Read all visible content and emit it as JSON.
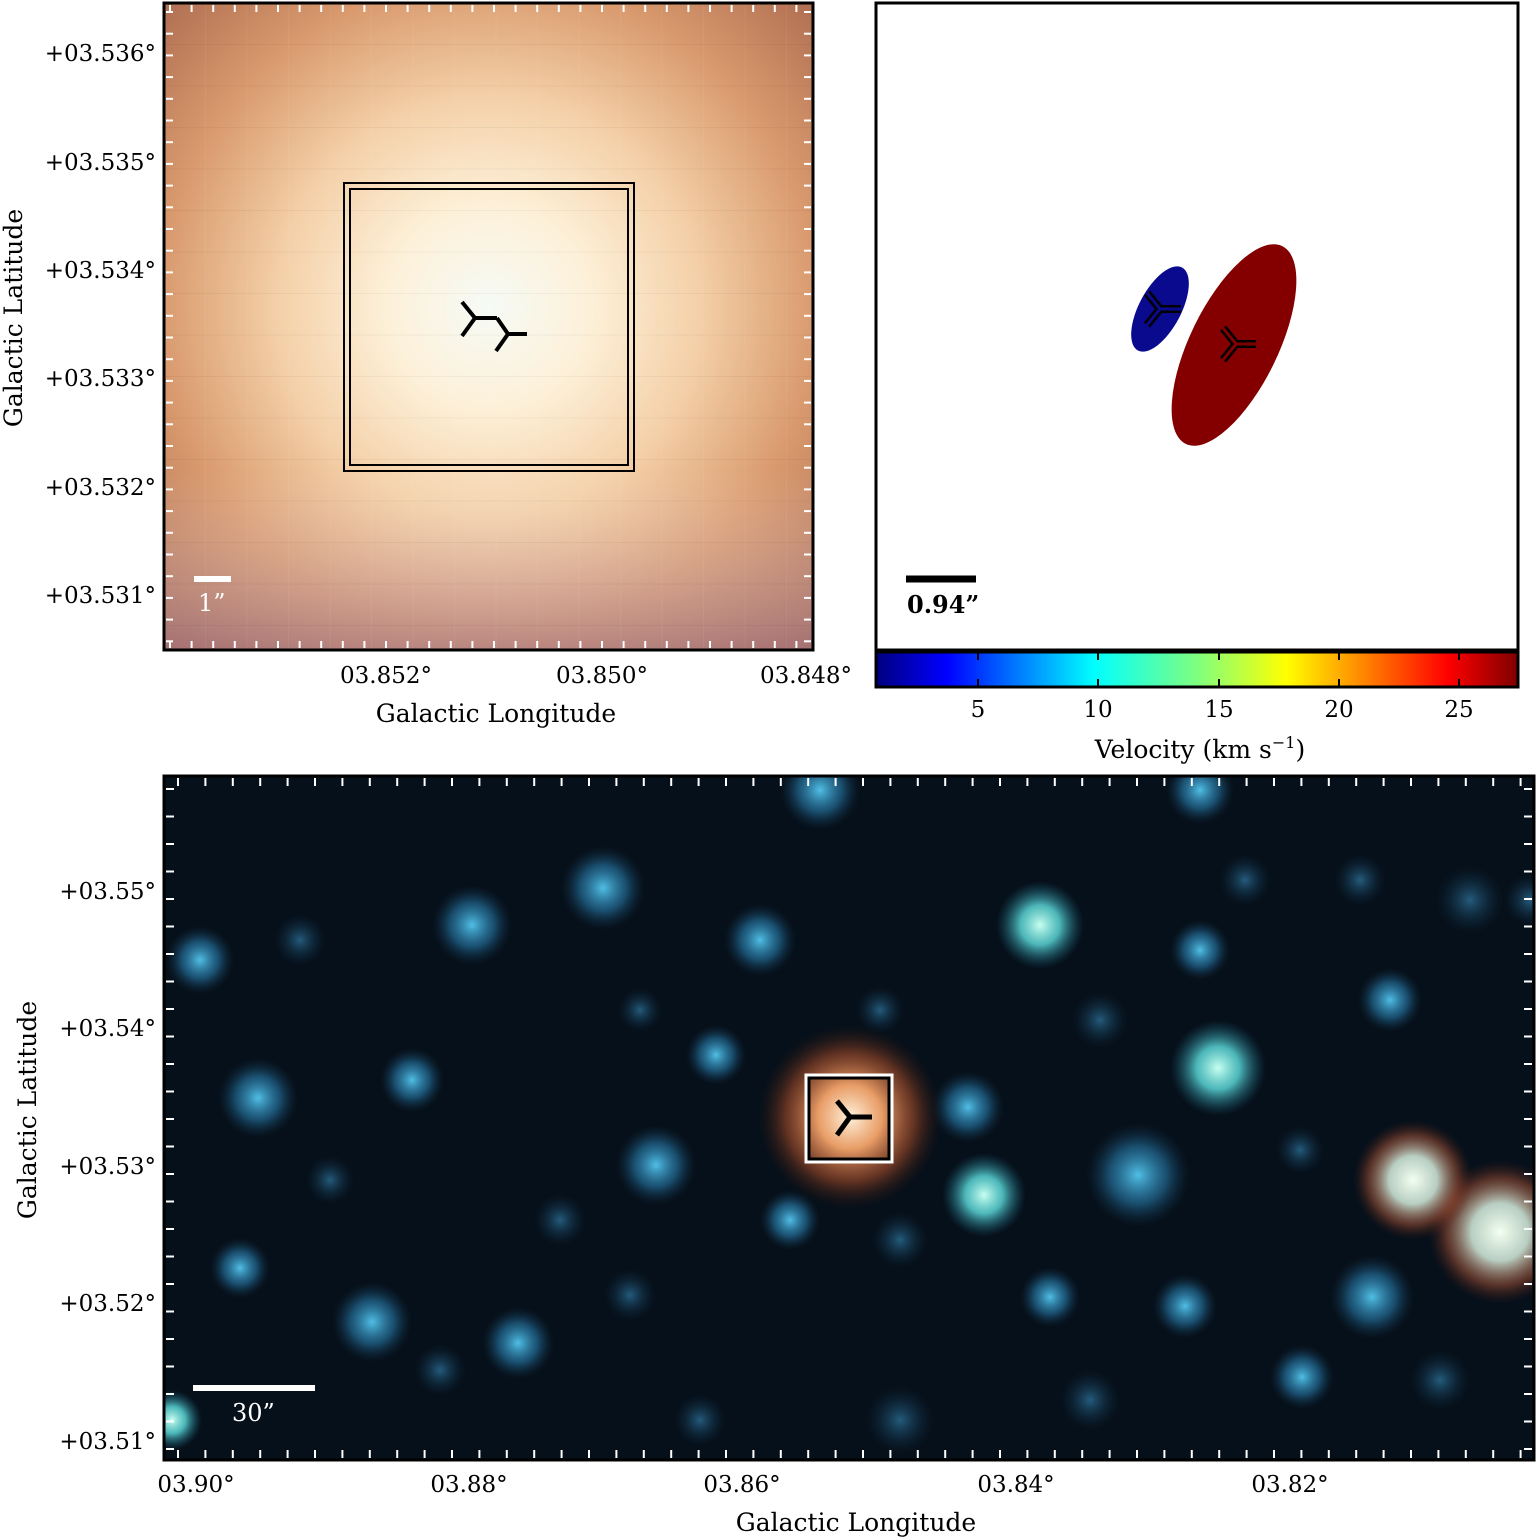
{
  "panel_a": {
    "xlabel": "Galactic Longitude",
    "ylabel": "Galactic Latitude",
    "xticks": [
      "03.852°",
      "03.850°",
      "03.848°"
    ],
    "yticks": [
      "+03.536°",
      "+03.535°",
      "+03.534°",
      "+03.533°",
      "+03.532°",
      "+03.531°"
    ],
    "scalebar_label": "1”",
    "scalebar_color": "#ffffff"
  },
  "panel_b": {
    "scalebar_label": "0.94”",
    "scalebar_color": "#000000",
    "colorbar": {
      "label": "Velocity (km s",
      "label_exp": "−1",
      "label_close": ")",
      "ticks": [
        "5",
        "10",
        "15",
        "20",
        "25"
      ],
      "colormap": "jet",
      "range": [
        0.7,
        27.4
      ]
    },
    "ellipses": [
      {
        "component": "blue",
        "velocity": 2.2,
        "color": "#0a0a8e"
      },
      {
        "component": "red",
        "velocity": 26.5,
        "color": "#840000"
      }
    ]
  },
  "panel_c": {
    "xlabel": "Galactic Longitude",
    "ylabel": "Galactic Latitude",
    "xticks": [
      "03.90°",
      "03.88°",
      "03.86°",
      "03.84°",
      "03.82°"
    ],
    "yticks": [
      "+03.55°",
      "+03.54°",
      "+03.53°",
      "+03.52°",
      "+03.51°"
    ],
    "scalebar_label": "30”",
    "scalebar_color": "#ffffff"
  },
  "colors": {
    "frame": "#000000",
    "marker": "#000000",
    "box": "#000000",
    "panel_a_warm": "#c07850",
    "panel_a_center": "#f6fbf6",
    "panel_c_background": "#06101a",
    "panel_c_star": "#4ab0dc",
    "panel_c_target": "#ff9a50"
  }
}
